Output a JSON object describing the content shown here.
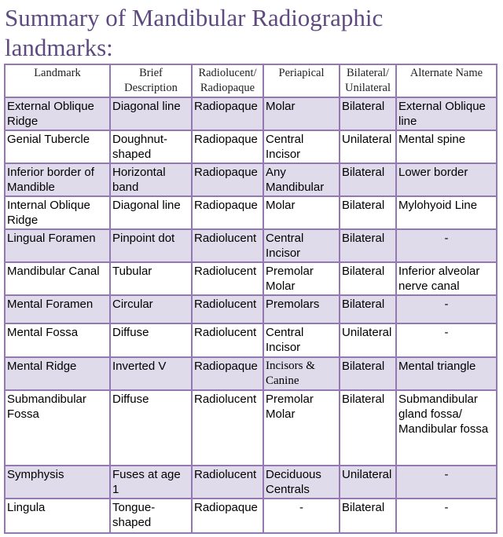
{
  "title": "Summary of Mandibular Radiographic landmarks:",
  "columns": [
    "Landmark",
    "Brief Description",
    "Radiolucent/ Radiopaque",
    "Periapical",
    "Bilateral/ Unilateral",
    "Alternate Name"
  ],
  "rows": [
    [
      "External Oblique Ridge",
      "Diagonal line",
      "Radiopaque",
      "Molar",
      "Bilateral",
      "External Oblique line"
    ],
    [
      "Genial Tubercle",
      "Doughnut-shaped",
      "Radiopaque",
      "Central Incisor",
      "Unilateral",
      "Mental spine"
    ],
    [
      "Inferior border of Mandible",
      "Horizontal band",
      "Radiopaque",
      "Any Mandibular",
      "Bilateral",
      "Lower border"
    ],
    [
      "Internal Oblique Ridge",
      "Diagonal line",
      "Radiopaque",
      "Molar",
      "Bilateral",
      "Mylohyoid Line"
    ],
    [
      "Lingual Foramen",
      "Pinpoint dot",
      "Radiolucent",
      "Central Incisor",
      "Bilateral",
      "-"
    ],
    [
      "Mandibular Canal",
      "Tubular",
      "Radiolucent",
      "Premolar Molar",
      "Bilateral",
      "Inferior alveolar nerve canal"
    ],
    [
      "Mental Foramen",
      "Circular",
      "Radiolucent",
      "Premolars",
      "Bilateral",
      "-"
    ],
    [
      "Mental Fossa",
      "Diffuse",
      "Radiolucent",
      "Central Incisor",
      "Unilateral",
      "-"
    ],
    [
      "Mental Ridge",
      "Inverted V",
      "Radiopaque",
      "Incisors & Canine",
      "Bilateral",
      "Mental triangle"
    ],
    [
      "Submandibular Fossa",
      "Diffuse",
      "Radiolucent",
      "Premolar Molar",
      "Bilateral",
      "Submandibular gland fossa/ Mandibular fossa"
    ],
    [
      "Symphysis",
      "Fuses at age 1",
      "Radiolucent",
      "Deciduous Centrals",
      "Unilateral",
      "-"
    ],
    [
      "Lingula",
      "Tongue-shaped",
      "Radiopaque",
      "-",
      "Bilateral",
      "-"
    ]
  ]
}
